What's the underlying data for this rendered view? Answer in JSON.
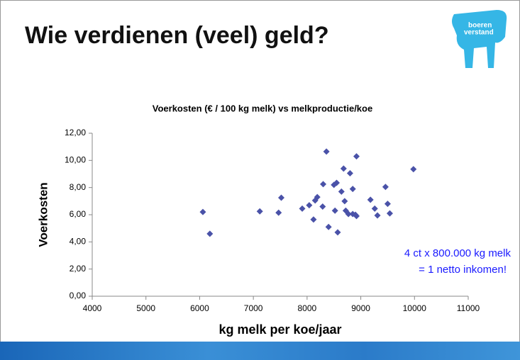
{
  "slide": {
    "title": "Wie verdienen (veel) geld?",
    "logo": [
      "boeren",
      "verstand"
    ]
  },
  "chart_data": {
    "type": "scatter",
    "title": "Voerkosten (€ / 100 kg melk) vs melkproductie/koe",
    "x_label": "kg melk per koe/jaar",
    "y_label": "Voerkosten",
    "annotations": [
      "4 ct x 800.000 kg melk",
      "= 1 netto inkomen!"
    ],
    "color": "#4a52a8",
    "xlim": [
      4000,
      11000
    ],
    "xticks": [
      4000,
      5000,
      6000,
      7000,
      8000,
      9000,
      10000,
      11000
    ],
    "ylim": [
      0,
      12
    ],
    "yticks": [
      {
        "value": 0,
        "label": "0,00"
      },
      {
        "value": 2,
        "label": "2,00"
      },
      {
        "value": 4,
        "label": "4,00"
      },
      {
        "value": 6,
        "label": "6,00"
      },
      {
        "value": 8,
        "label": "8,00"
      },
      {
        "value": 10,
        "label": "10,00"
      },
      {
        "value": 12,
        "label": "12,00"
      }
    ],
    "x": [
      6060,
      6190,
      7120,
      7470,
      7520,
      7910,
      8040,
      8150,
      8190,
      8120,
      8290,
      8300,
      8360,
      8400,
      8520,
      8500,
      8550,
      8570,
      8640,
      8680,
      8700,
      8720,
      8770,
      8800,
      8850,
      8850,
      8900,
      8920,
      8920,
      9180,
      9260,
      9310,
      9460,
      9500,
      9540,
      9980
    ],
    "values": [
      6.2,
      4.6,
      6.25,
      6.15,
      7.25,
      6.45,
      6.7,
      7.05,
      7.3,
      5.65,
      6.6,
      8.25,
      10.65,
      5.1,
      6.3,
      8.2,
      8.35,
      4.7,
      7.7,
      9.4,
      7.0,
      6.3,
      6.05,
      9.05,
      7.9,
      6.05,
      6.0,
      10.3,
      5.9,
      7.1,
      6.45,
      5.95,
      8.05,
      6.8,
      6.1,
      9.35
    ]
  }
}
